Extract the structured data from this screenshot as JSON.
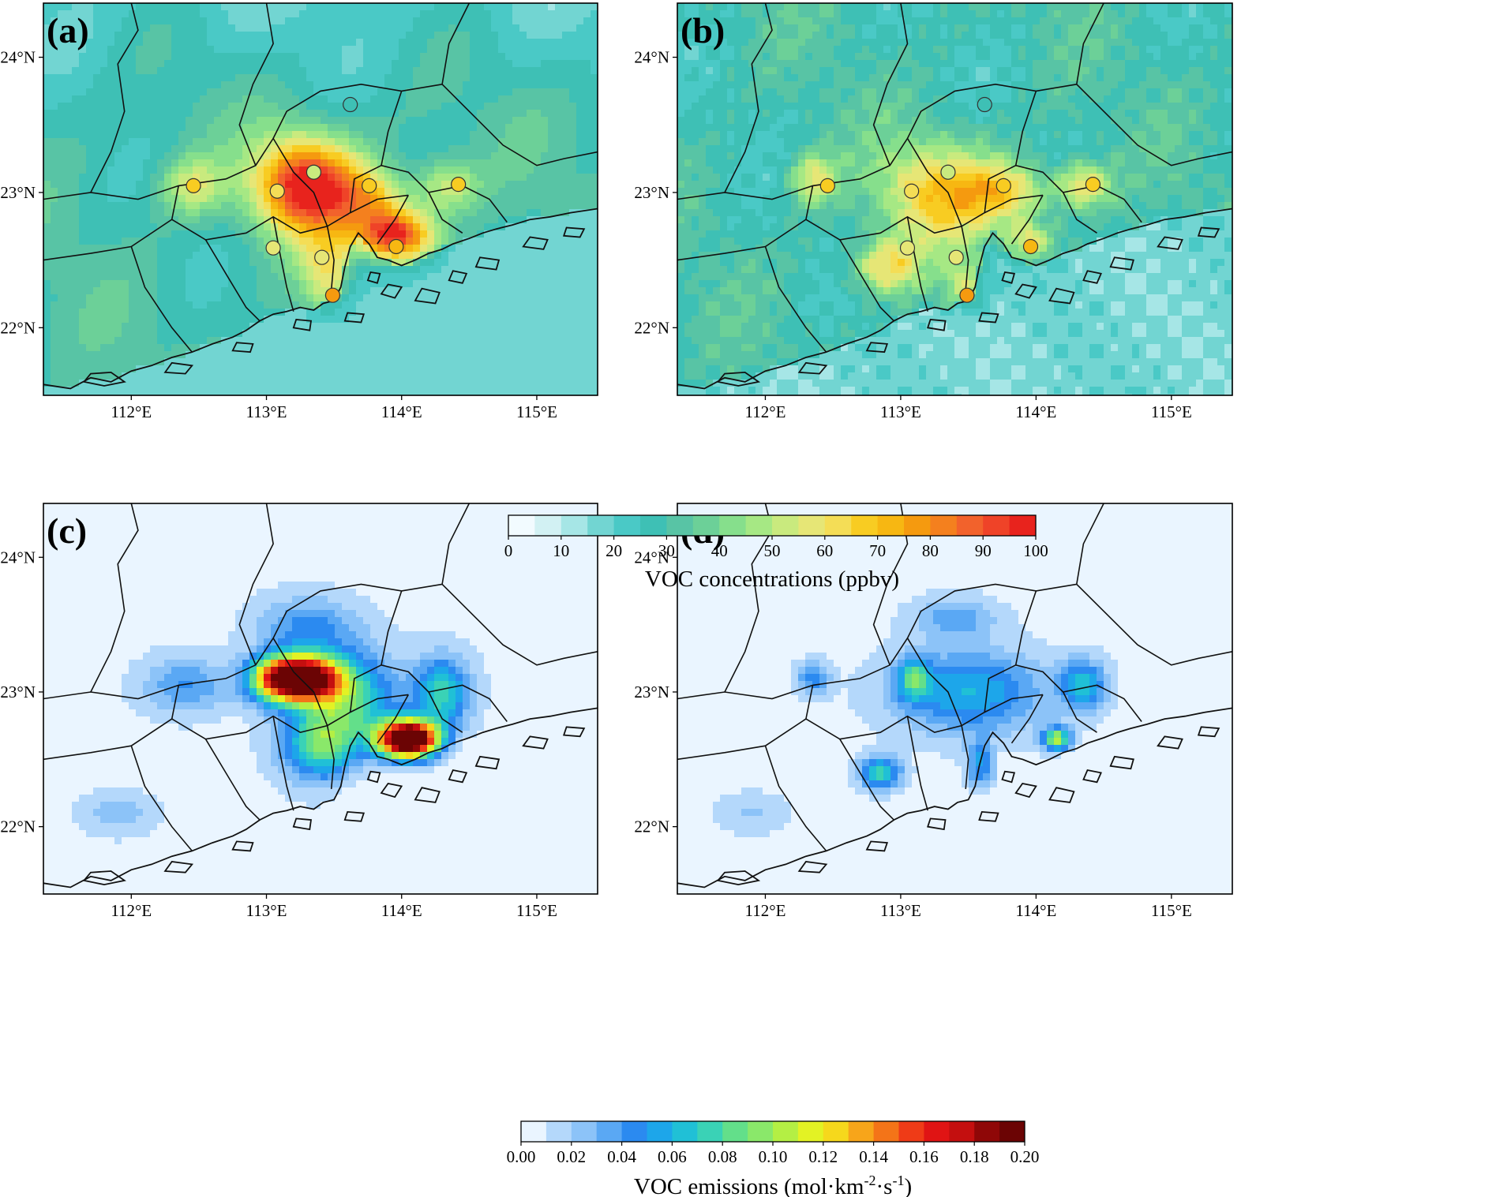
{
  "panels": [
    {
      "id": "a",
      "label": "(a)",
      "field": "conc",
      "variant": "a"
    },
    {
      "id": "b",
      "label": "(b)",
      "field": "conc",
      "variant": "b"
    },
    {
      "id": "c",
      "label": "(c)",
      "field": "emis",
      "variant": "c"
    },
    {
      "id": "d",
      "label": "(d)",
      "field": "emis",
      "variant": "d"
    }
  ],
  "axes": {
    "lon_range": [
      111.35,
      115.45
    ],
    "lat_range": [
      21.5,
      24.4
    ],
    "lon_ticks": [
      112,
      113,
      114,
      115
    ],
    "lon_tick_labels": [
      "112°E",
      "113°E",
      "114°E",
      "115°E"
    ],
    "lat_ticks": [
      22,
      23,
      24
    ],
    "lat_tick_labels": [
      "22°N",
      "23°N",
      "24°N"
    ]
  },
  "colorbars": {
    "concentration": {
      "title": "VOC concentrations (ppbv)",
      "range": [
        0,
        100
      ],
      "tick_labels": [
        "0",
        "10",
        "20",
        "30",
        "40",
        "50",
        "60",
        "70",
        "80",
        "90",
        "100"
      ],
      "colors": [
        "#f2fbff",
        "#d2f1f3",
        "#a6e6e6",
        "#72d5d2",
        "#4ac9c6",
        "#3ec0b5",
        "#58c4a5",
        "#6cd098",
        "#86df8c",
        "#a6e884",
        "#c9ea7e",
        "#e6e676",
        "#f4dd56",
        "#f8cc22",
        "#f7b712",
        "#f59a0f",
        "#f4801e",
        "#f2622c",
        "#ef4328",
        "#e8231d"
      ]
    },
    "emission": {
      "title": "VOC emissions (mol·km",
      "title_sup1": "-2",
      "title_mid": "·s",
      "title_sup2": "-1",
      "title_end": ")",
      "range": [
        0,
        0.2
      ],
      "tick_labels": [
        "0.00",
        "0.02",
        "0.04",
        "0.06",
        "0.08",
        "0.10",
        "0.12",
        "0.14",
        "0.16",
        "0.18",
        "0.20"
      ],
      "colors": [
        "#eaf5ff",
        "#b4d8fb",
        "#8cc3f8",
        "#5aa8f4",
        "#2b8af0",
        "#1da6ea",
        "#20c0d6",
        "#3ad2b6",
        "#63df8a",
        "#8ae86a",
        "#b4ef44",
        "#e3f224",
        "#f6d81c",
        "#f7a51a",
        "#f47418",
        "#ef3b17",
        "#e01414",
        "#c40f0f",
        "#8f0707",
        "#6b0404"
      ]
    }
  },
  "sites": [
    {
      "lon": 112.46,
      "lat": 23.05,
      "value": 65
    },
    {
      "lon": 113.08,
      "lat": 23.01,
      "value": 63
    },
    {
      "lon": 113.35,
      "lat": 23.15,
      "value": 54
    },
    {
      "lon": 113.76,
      "lat": 23.05,
      "value": 67
    },
    {
      "lon": 114.42,
      "lat": 23.06,
      "value": 67
    },
    {
      "lon": 113.62,
      "lat": 23.65,
      "value": 29
    },
    {
      "lon": 113.05,
      "lat": 22.59,
      "value": 57
    },
    {
      "lon": 113.41,
      "lat": 22.52,
      "value": 55
    },
    {
      "lon": 113.96,
      "lat": 22.6,
      "value": 74
    },
    {
      "lon": 113.49,
      "lat": 22.24,
      "value": 78
    }
  ]
}
